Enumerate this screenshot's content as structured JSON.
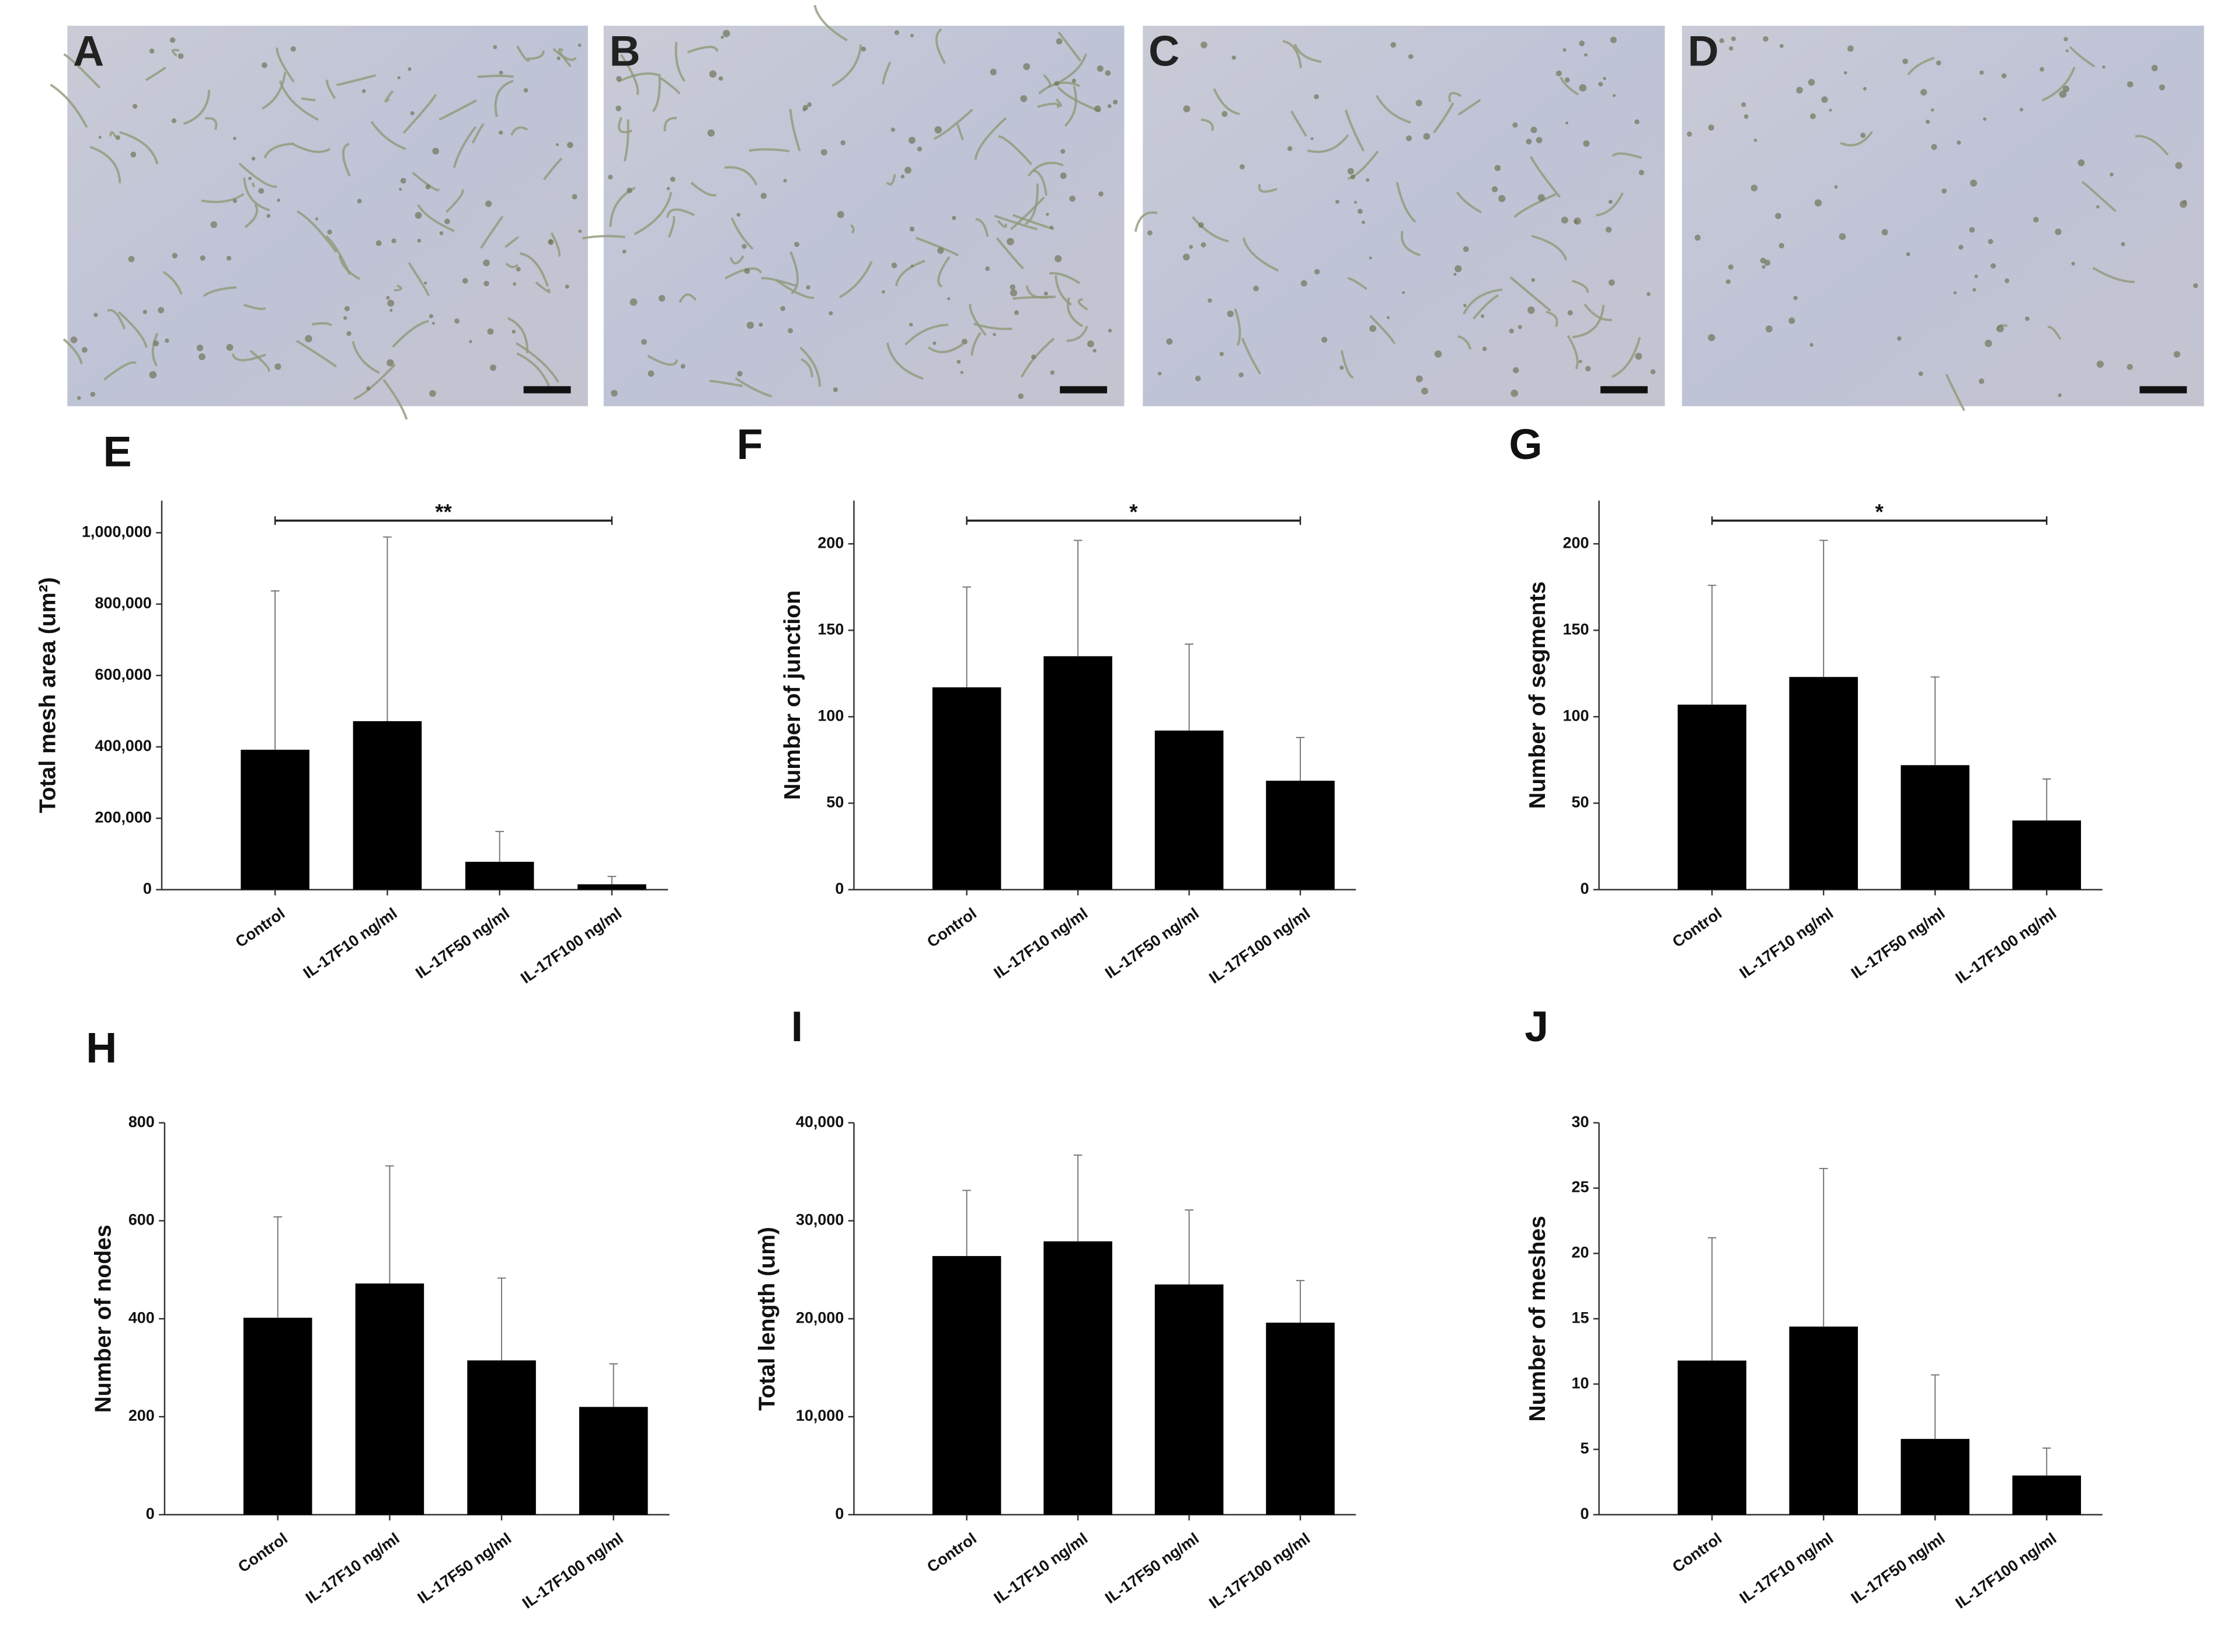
{
  "panels": [
    {
      "label": "A"
    },
    {
      "label": "B"
    },
    {
      "label": "C"
    },
    {
      "label": "D"
    }
  ],
  "chart_data": [
    {
      "type": "bar",
      "label": "E",
      "y_label": "Total mesh area (um²)",
      "categories": [
        "Control",
        "IL-17F10 ng/ml",
        "IL-17F50 ng/ml",
        "IL-17F100 ng/ml"
      ],
      "values": [
        392000,
        472000,
        78000,
        15000
      ],
      "errors": [
        445000,
        516000,
        85000,
        22000
      ],
      "color": "#000000",
      "annotation": "**",
      "ylim": [
        0,
        1090000
      ],
      "yticks": [
        0,
        {
          "value": 200000,
          "label": "200,000"
        },
        {
          "value": 400000,
          "label": "400,000"
        },
        {
          "value": 600000,
          "label": "600,000"
        },
        {
          "value": 800000,
          "label": "800,000"
        },
        {
          "value": 1000000,
          "label": "1,000,000"
        }
      ]
    },
    {
      "type": "bar",
      "label": "F",
      "y_label": "Number of junction",
      "categories": [
        "Control",
        "IL-17F10 ng/ml",
        "IL-17F50 ng/ml",
        "IL-17F100 ng/ml"
      ],
      "values": [
        117,
        135,
        92,
        63
      ],
      "errors": [
        58,
        67,
        50,
        25
      ],
      "color": "#000000",
      "annotation": "*",
      "ylim": [
        0,
        225
      ],
      "yticks": [
        0,
        50,
        100,
        150,
        200
      ]
    },
    {
      "type": "bar",
      "label": "G",
      "y_label": "Number of segments",
      "categories": [
        "Control",
        "IL-17F10 ng/ml",
        "IL-17F50 ng/ml",
        "IL-17F100 ng/ml"
      ],
      "values": [
        107,
        123,
        72,
        40
      ],
      "errors": [
        69,
        79,
        51,
        24
      ],
      "color": "#000000",
      "annotation": "*",
      "ylim": [
        0,
        225
      ],
      "yticks": [
        0,
        50,
        100,
        150,
        200
      ]
    },
    {
      "type": "bar",
      "label": "H",
      "y_label": "Number of nodes",
      "categories": [
        "Control",
        "IL-17F10 ng/ml",
        "IL-17F50 ng/ml",
        "IL-17F100 ng/ml"
      ],
      "values": [
        402,
        472,
        315,
        220
      ],
      "errors": [
        206,
        240,
        168,
        88
      ],
      "color": "#000000",
      "ylim": [
        0,
        800
      ],
      "yticks": [
        0,
        200,
        400,
        600,
        800
      ]
    },
    {
      "type": "bar",
      "label": "I",
      "y_label": "Total length (um)",
      "categories": [
        "Control",
        "IL-17F10 ng/ml",
        "IL-17F50 ng/ml",
        "IL-17F100 ng/ml"
      ],
      "values": [
        26400,
        27900,
        23500,
        19600
      ],
      "errors": [
        6700,
        8800,
        7600,
        4300
      ],
      "color": "#000000",
      "ylim": [
        0,
        40000
      ],
      "yticks": [
        0,
        {
          "value": 10000,
          "label": "10,000"
        },
        {
          "value": 20000,
          "label": "20,000"
        },
        {
          "value": 30000,
          "label": "30,000"
        },
        {
          "value": 40000,
          "label": "40,000"
        }
      ]
    },
    {
      "type": "bar",
      "label": "J",
      "y_label": "Number of meshes",
      "categories": [
        "Control",
        "IL-17F10 ng/ml",
        "IL-17F50 ng/ml",
        "IL-17F100 ng/ml"
      ],
      "values": [
        11.8,
        14.4,
        5.8,
        3.0
      ],
      "errors": [
        9.4,
        12.1,
        4.9,
        2.1
      ],
      "color": "#000000",
      "ylim": [
        0,
        30
      ],
      "yticks": [
        0,
        5,
        10,
        15,
        20,
        25,
        30
      ]
    }
  ]
}
